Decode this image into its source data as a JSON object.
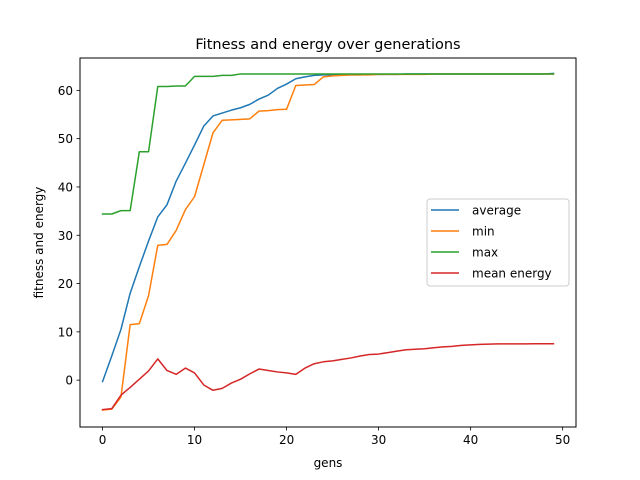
{
  "chart_data": {
    "type": "line",
    "title": "Fitness and energy over generations",
    "xlabel": "gens",
    "ylabel": "fitness and energy",
    "xlim": [
      -2.45,
      51.45
    ],
    "ylim": [
      -9.7,
      66.7
    ],
    "x_ticks": [
      0,
      10,
      20,
      30,
      40,
      50
    ],
    "y_ticks": [
      0,
      10,
      20,
      30,
      40,
      50,
      60
    ],
    "grid": false,
    "legend_position": "center-right",
    "x": [
      0,
      1,
      2,
      3,
      4,
      5,
      6,
      7,
      8,
      9,
      10,
      11,
      12,
      13,
      14,
      15,
      16,
      17,
      18,
      19,
      20,
      21,
      22,
      23,
      24,
      25,
      26,
      27,
      28,
      29,
      30,
      31,
      32,
      33,
      34,
      35,
      36,
      37,
      38,
      39,
      40,
      41,
      42,
      43,
      44,
      45,
      46,
      47,
      48,
      49
    ],
    "series": [
      {
        "name": "average",
        "color": "#1f77b4",
        "values": [
          -0.3,
          5,
          10.5,
          18,
          23.5,
          28.8,
          33.8,
          36.3,
          41.2,
          44.9,
          48.7,
          52.6,
          54.7,
          55.3,
          55.9,
          56.4,
          57.1,
          58.2,
          59,
          60.4,
          61.3,
          62.4,
          62.8,
          63.1,
          63.2,
          63.2,
          63.2,
          63.2,
          63.2,
          63.3,
          63.3,
          63.3,
          63.3,
          63.4,
          63.4,
          63.4,
          63.4,
          63.4,
          63.4,
          63.4,
          63.4,
          63.4,
          63.4,
          63.4,
          63.4,
          63.4,
          63.4,
          63.4,
          63.4,
          63.5
        ]
      },
      {
        "name": "min",
        "color": "#ff7f0e",
        "values": [
          -6.2,
          -6,
          -3.5,
          11.5,
          11.7,
          17.5,
          27.9,
          28.1,
          31,
          35.3,
          38,
          44.6,
          51.2,
          53.8,
          53.9,
          54,
          54.1,
          55.7,
          55.8,
          56,
          56.1,
          61,
          61.1,
          61.2,
          62.8,
          63,
          63.1,
          63.2,
          63.2,
          63.2,
          63.3,
          63.3,
          63.3,
          63.3,
          63.3,
          63.3,
          63.4,
          63.4,
          63.4,
          63.4,
          63.4,
          63.4,
          63.4,
          63.4,
          63.4,
          63.4,
          63.4,
          63.4,
          63.4,
          63.4
        ]
      },
      {
        "name": "max",
        "color": "#2ca02c",
        "values": [
          34.4,
          34.4,
          35.1,
          35.1,
          47.3,
          47.3,
          60.8,
          60.8,
          60.9,
          60.9,
          62.9,
          62.9,
          62.9,
          63.1,
          63.1,
          63.4,
          63.4,
          63.4,
          63.4,
          63.4,
          63.4,
          63.4,
          63.4,
          63.4,
          63.4,
          63.4,
          63.4,
          63.4,
          63.4,
          63.4,
          63.4,
          63.4,
          63.4,
          63.4,
          63.4,
          63.4,
          63.4,
          63.4,
          63.4,
          63.4,
          63.4,
          63.4,
          63.4,
          63.4,
          63.4,
          63.4,
          63.4,
          63.4,
          63.4,
          63.4
        ]
      },
      {
        "name": "mean energy",
        "color": "#d62728",
        "values": [
          -6.1,
          -5.9,
          -3.1,
          -1.5,
          0.2,
          1.9,
          4.4,
          2,
          1.2,
          2.5,
          1.5,
          -1,
          -2.1,
          -1.7,
          -0.6,
          0.2,
          1.3,
          2.3,
          2,
          1.7,
          1.5,
          1.2,
          2.5,
          3.4,
          3.8,
          4,
          4.3,
          4.6,
          5,
          5.3,
          5.4,
          5.7,
          6,
          6.3,
          6.4,
          6.5,
          6.7,
          6.9,
          7,
          7.2,
          7.3,
          7.4,
          7.45,
          7.5,
          7.5,
          7.5,
          7.52,
          7.53,
          7.55,
          7.55
        ]
      }
    ]
  }
}
